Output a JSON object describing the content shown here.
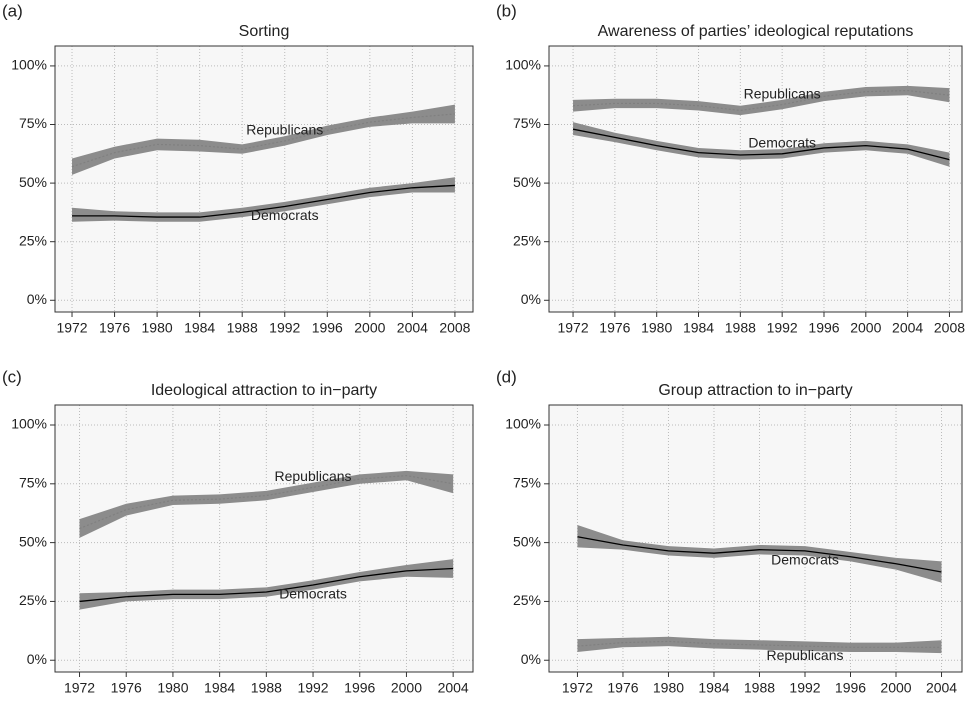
{
  "chart_data": [
    {
      "type": "line",
      "label": "(a)",
      "title": "Sorting",
      "x": [
        1972,
        1976,
        1980,
        1984,
        1988,
        1992,
        1996,
        2000,
        2004,
        2008
      ],
      "xlim": [
        1970.4,
        2009.7
      ],
      "xticks": [
        1972,
        1976,
        1980,
        1984,
        1988,
        1992,
        1996,
        2000,
        2004,
        2008
      ],
      "ylim": [
        -5,
        108.5
      ],
      "yticks": [
        {
          "value": 0,
          "label": "0%"
        },
        {
          "value": 25,
          "label": "25%"
        },
        {
          "value": 50,
          "label": "50%"
        },
        {
          "value": 75,
          "label": "75%"
        },
        {
          "value": 100,
          "label": "100%"
        }
      ],
      "grid": true,
      "series": [
        {
          "name": "Republicans",
          "color": "#808080",
          "linestyle": "dotted",
          "values": [
            57,
            63,
            66.5,
            66,
            64.5,
            68,
            72.5,
            76,
            78,
            79.5
          ],
          "lower": [
            53.5,
            60.5,
            64,
            63.5,
            62.5,
            66,
            70.5,
            74,
            75.5,
            75.5
          ],
          "upper": [
            60.5,
            65.5,
            69,
            68.5,
            66.5,
            70,
            74.5,
            78,
            80.5,
            83.5
          ]
        },
        {
          "name": "Democrats",
          "color": "#000000",
          "linestyle": "solid",
          "values": [
            36,
            36,
            35.5,
            35.5,
            37.5,
            40,
            43,
            46,
            48,
            49
          ],
          "lower": [
            33.5,
            34,
            33.5,
            33.5,
            35.5,
            38,
            41,
            44,
            46,
            46
          ],
          "upper": [
            39.5,
            38,
            37.5,
            37.5,
            39.5,
            42,
            45,
            48,
            50,
            52.5
          ]
        }
      ]
    },
    {
      "type": "line",
      "label": "(b)",
      "title": "Awareness of parties’ ideological reputations",
      "x": [
        1972,
        1976,
        1980,
        1984,
        1988,
        1992,
        1996,
        2000,
        2004,
        2008
      ],
      "xlim": [
        1969.7,
        2009.2
      ],
      "xticks": [
        1972,
        1976,
        1980,
        1984,
        1988,
        1992,
        1996,
        2000,
        2004,
        2008
      ],
      "ylim": [
        -5,
        108.5
      ],
      "yticks": [
        {
          "value": 0,
          "label": "0%"
        },
        {
          "value": 25,
          "label": "25%"
        },
        {
          "value": 50,
          "label": "50%"
        },
        {
          "value": 75,
          "label": "75%"
        },
        {
          "value": 100,
          "label": "100%"
        }
      ],
      "grid": true,
      "series": [
        {
          "name": "Republicans",
          "color": "#808080",
          "linestyle": "dotted",
          "values": [
            83,
            84,
            84,
            83,
            81,
            83.5,
            87,
            89,
            89.5,
            87.5
          ],
          "lower": [
            80.5,
            82,
            82,
            81,
            79,
            81.5,
            85,
            87,
            87.5,
            84.5
          ],
          "upper": [
            85.5,
            86,
            86,
            85,
            83,
            85.5,
            89,
            91,
            91.5,
            90.5
          ]
        },
        {
          "name": "Democrats",
          "color": "#000000",
          "linestyle": "solid",
          "values": [
            73,
            69.5,
            66,
            63,
            62,
            62.5,
            65,
            66,
            64.5,
            60
          ],
          "lower": [
            70.5,
            67.5,
            64,
            61,
            60,
            60.5,
            63,
            64,
            62.5,
            57
          ],
          "upper": [
            76,
            71.5,
            68,
            65,
            64,
            64.5,
            67,
            68,
            66.5,
            63
          ]
        }
      ]
    },
    {
      "type": "line",
      "label": "(c)",
      "title": "Ideological attraction to in−party",
      "x": [
        1972,
        1976,
        1980,
        1984,
        1988,
        1992,
        1996,
        2000,
        2004
      ],
      "xlim": [
        1969.9,
        2005.7
      ],
      "xticks": [
        1972,
        1976,
        1980,
        1984,
        1988,
        1992,
        1996,
        2000,
        2004
      ],
      "ylim": [
        -5,
        108.5
      ],
      "yticks": [
        {
          "value": 0,
          "label": "0%"
        },
        {
          "value": 25,
          "label": "25%"
        },
        {
          "value": 50,
          "label": "50%"
        },
        {
          "value": 75,
          "label": "75%"
        },
        {
          "value": 100,
          "label": "100%"
        }
      ],
      "grid": true,
      "series": [
        {
          "name": "Republicans",
          "color": "#808080",
          "linestyle": "dotted",
          "values": [
            56,
            64,
            68,
            68.5,
            70,
            73.5,
            77,
            78.5,
            75
          ],
          "lower": [
            52,
            61.5,
            66,
            66.5,
            68,
            71.5,
            75,
            76.5,
            71
          ],
          "upper": [
            60,
            66.5,
            70,
            70.5,
            72,
            75.5,
            79,
            80.5,
            79
          ]
        },
        {
          "name": "Democrats",
          "color": "#000000",
          "linestyle": "solid",
          "values": [
            25,
            27,
            28,
            28,
            29,
            32,
            35.5,
            38,
            39
          ],
          "lower": [
            21.5,
            25,
            26,
            26,
            27,
            30,
            33.5,
            35.5,
            35
          ],
          "upper": [
            28.5,
            29,
            30,
            30,
            31,
            34,
            37.5,
            40.5,
            43
          ]
        }
      ]
    },
    {
      "type": "line",
      "label": "(d)",
      "title": "Group attraction to in−party",
      "x": [
        1972,
        1976,
        1980,
        1984,
        1988,
        1992,
        1996,
        2000,
        2004
      ],
      "xlim": [
        1969.5,
        2005.8
      ],
      "xticks": [
        1972,
        1976,
        1980,
        1984,
        1988,
        1992,
        1996,
        2000,
        2004
      ],
      "ylim": [
        -5,
        108.5
      ],
      "yticks": [
        {
          "value": 0,
          "label": "0%"
        },
        {
          "value": 25,
          "label": "25%"
        },
        {
          "value": 50,
          "label": "50%"
        },
        {
          "value": 75,
          "label": "75%"
        },
        {
          "value": 100,
          "label": "100%"
        }
      ],
      "grid": true,
      "series": [
        {
          "name": "Democrats",
          "color": "#000000",
          "linestyle": "solid",
          "values": [
            52.5,
            49,
            46.5,
            45.5,
            47,
            46.5,
            44,
            41,
            37.5
          ],
          "lower": [
            48,
            47,
            44.5,
            43.5,
            45,
            44.5,
            42,
            38.5,
            33
          ],
          "upper": [
            57.5,
            51,
            48.5,
            47.5,
            49,
            48.5,
            46,
            43.5,
            42
          ]
        },
        {
          "name": "Republicans",
          "color": "#808080",
          "linestyle": "dotted",
          "values": [
            6,
            7.5,
            8,
            7,
            6.5,
            6,
            5.5,
            5.5,
            5.5
          ],
          "lower": [
            3.5,
            5.5,
            6,
            5,
            4.5,
            4,
            3.5,
            3.5,
            3
          ],
          "upper": [
            9,
            9.5,
            10,
            9,
            8.5,
            8,
            7.5,
            7.5,
            8.5
          ]
        }
      ]
    }
  ]
}
